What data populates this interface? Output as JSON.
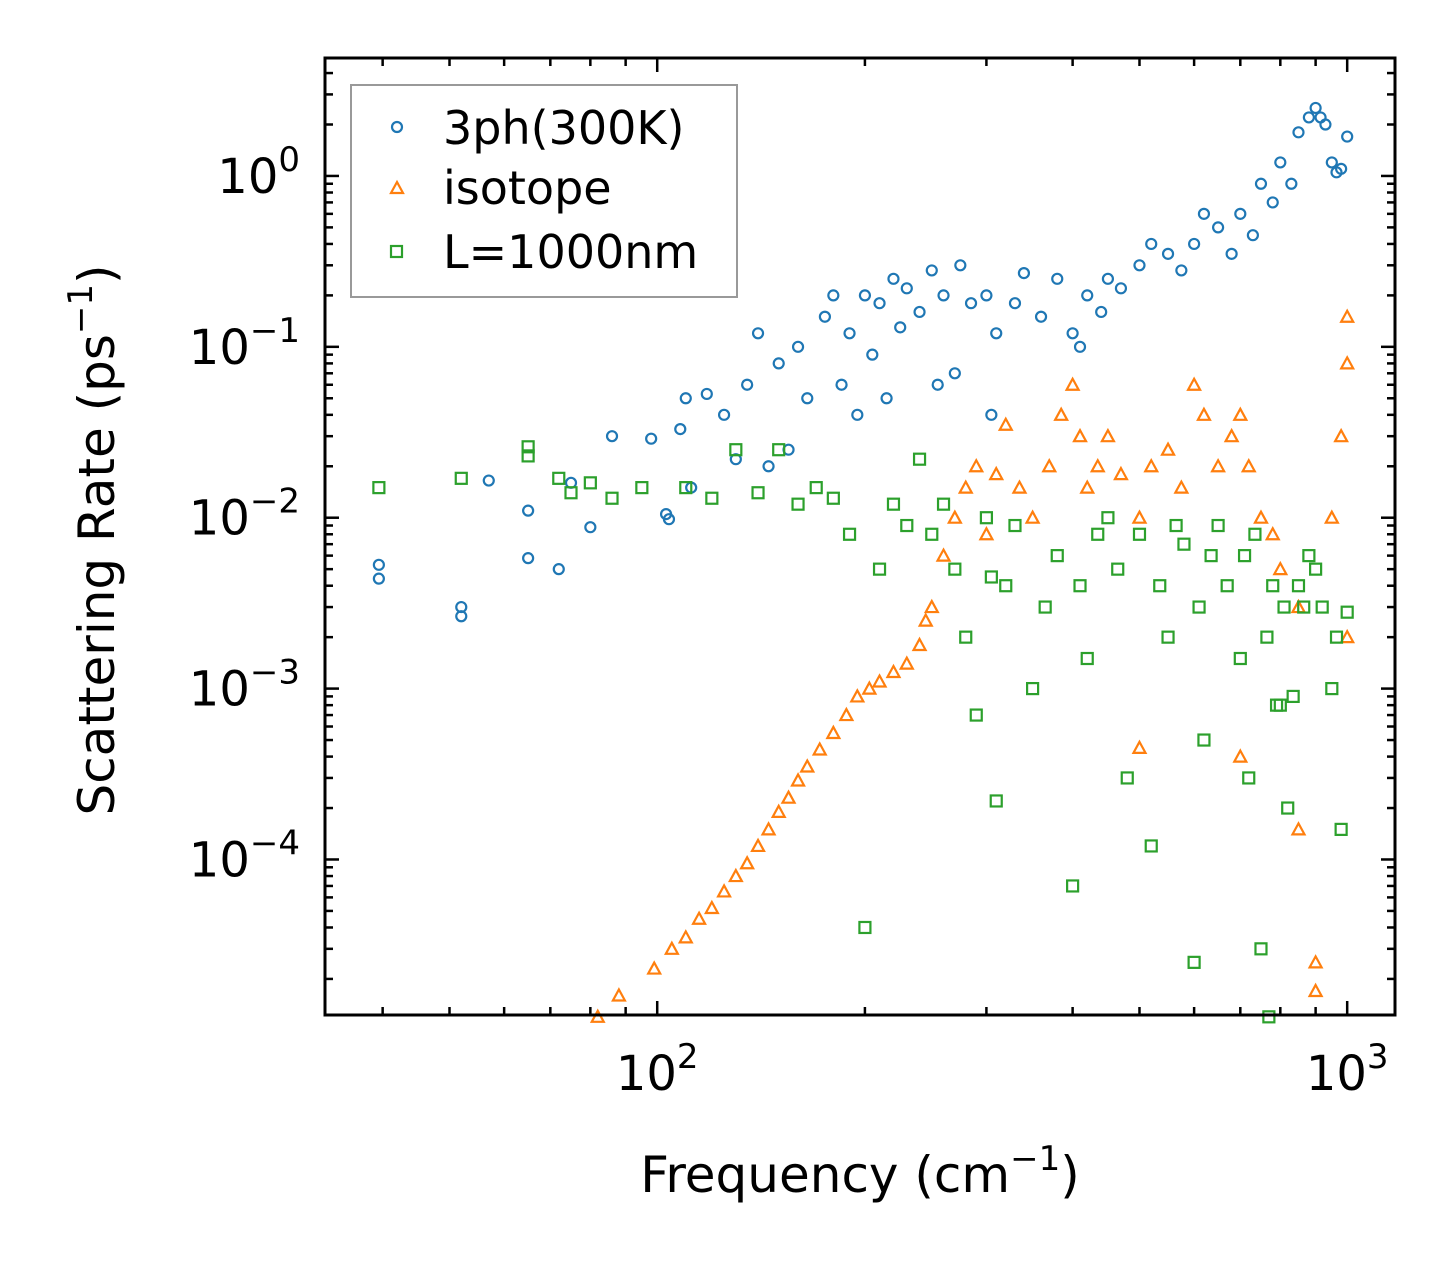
{
  "chart_data": {
    "type": "scatter",
    "xscale": "log",
    "yscale": "log",
    "xlabel": "Frequency (cm",
    "xlabel_sup": "−1",
    "xlabel_end": ")",
    "ylabel": "Scattering Rate (ps",
    "ylabel_sup": "−1",
    "ylabel_end": ")",
    "xlim": [
      33,
      1173
    ],
    "ylim": [
      1.23e-05,
      4.9
    ],
    "x_ticks": [
      {
        "value": 100,
        "base": "10",
        "exp": "2"
      },
      {
        "value": 1000,
        "base": "10",
        "exp": "3"
      }
    ],
    "y_ticks": [
      {
        "value": 1,
        "base": "10",
        "exp": "0"
      },
      {
        "value": 0.1,
        "base": "10",
        "exp": "−1"
      },
      {
        "value": 0.01,
        "base": "10",
        "exp": "−2"
      },
      {
        "value": 0.001,
        "base": "10",
        "exp": "−3"
      },
      {
        "value": 0.0001,
        "base": "10",
        "exp": "−4"
      }
    ],
    "legend_position": "top-left",
    "series": [
      {
        "name": "3ph(300K)",
        "marker": "circle",
        "color": "#1f77b4",
        "points": [
          [
            39.5,
            0.0053
          ],
          [
            39.5,
            0.0044
          ],
          [
            52,
            0.003
          ],
          [
            52,
            0.00265
          ],
          [
            57,
            0.0165
          ],
          [
            65,
            0.011
          ],
          [
            65,
            0.0058
          ],
          [
            72,
            0.005
          ],
          [
            75,
            0.016
          ],
          [
            80,
            0.0088
          ],
          [
            86,
            0.03
          ],
          [
            98,
            0.029
          ],
          [
            103,
            0.0105
          ],
          [
            104,
            0.0098
          ],
          [
            108,
            0.033
          ],
          [
            112,
            0.015
          ],
          [
            110,
            0.05
          ],
          [
            118,
            0.053
          ],
          [
            125,
            0.04
          ],
          [
            130,
            0.022
          ],
          [
            135,
            0.06
          ],
          [
            140,
            0.12
          ],
          [
            145,
            0.02
          ],
          [
            150,
            0.08
          ],
          [
            155,
            0.025
          ],
          [
            160,
            0.1
          ],
          [
            165,
            0.05
          ],
          [
            175,
            0.15
          ],
          [
            180,
            0.2
          ],
          [
            185,
            0.06
          ],
          [
            190,
            0.12
          ],
          [
            195,
            0.04
          ],
          [
            200,
            0.2
          ],
          [
            205,
            0.09
          ],
          [
            210,
            0.18
          ],
          [
            215,
            0.05
          ],
          [
            220,
            0.25
          ],
          [
            225,
            0.13
          ],
          [
            230,
            0.22
          ],
          [
            240,
            0.16
          ],
          [
            250,
            0.28
          ],
          [
            255,
            0.06
          ],
          [
            260,
            0.2
          ],
          [
            270,
            0.07
          ],
          [
            275,
            0.3
          ],
          [
            285,
            0.18
          ],
          [
            300,
            0.2
          ],
          [
            305,
            0.04
          ],
          [
            310,
            0.12
          ],
          [
            330,
            0.18
          ],
          [
            340,
            0.27
          ],
          [
            360,
            0.15
          ],
          [
            380,
            0.25
          ],
          [
            400,
            0.12
          ],
          [
            410,
            0.1
          ],
          [
            420,
            0.2
          ],
          [
            440,
            0.16
          ],
          [
            450,
            0.25
          ],
          [
            470,
            0.22
          ],
          [
            500,
            0.3
          ],
          [
            520,
            0.4
          ],
          [
            550,
            0.35
          ],
          [
            575,
            0.28
          ],
          [
            600,
            0.4
          ],
          [
            620,
            0.6
          ],
          [
            650,
            0.5
          ],
          [
            680,
            0.35
          ],
          [
            700,
            0.6
          ],
          [
            730,
            0.45
          ],
          [
            750,
            0.9
          ],
          [
            780,
            0.7
          ],
          [
            800,
            1.2
          ],
          [
            830,
            0.9
          ],
          [
            850,
            1.8
          ],
          [
            880,
            2.2
          ],
          [
            900,
            2.5
          ],
          [
            915,
            2.2
          ],
          [
            930,
            2.0
          ],
          [
            950,
            1.2
          ],
          [
            965,
            1.05
          ],
          [
            980,
            1.1
          ],
          [
            1000,
            1.7
          ]
        ]
      },
      {
        "name": "isotope",
        "marker": "triangle",
        "color": "#ff7f0e",
        "points": [
          [
            82,
            1.2e-05
          ],
          [
            88,
            1.6e-05
          ],
          [
            99,
            2.3e-05
          ],
          [
            105,
            3e-05
          ],
          [
            110,
            3.5e-05
          ],
          [
            115,
            4.5e-05
          ],
          [
            120,
            5.2e-05
          ],
          [
            125,
            6.5e-05
          ],
          [
            130,
            8e-05
          ],
          [
            135,
            9.5e-05
          ],
          [
            140,
            0.00012
          ],
          [
            145,
            0.00015
          ],
          [
            150,
            0.00019
          ],
          [
            155,
            0.00023
          ],
          [
            160,
            0.00029
          ],
          [
            165,
            0.00035
          ],
          [
            172,
            0.00044
          ],
          [
            180,
            0.00055
          ],
          [
            188,
            0.0007
          ],
          [
            195,
            0.0009
          ],
          [
            203,
            0.001
          ],
          [
            210,
            0.0011
          ],
          [
            220,
            0.00125
          ],
          [
            230,
            0.0014
          ],
          [
            240,
            0.0018
          ],
          [
            245,
            0.0025
          ],
          [
            250,
            0.003
          ],
          [
            260,
            0.006
          ],
          [
            270,
            0.01
          ],
          [
            280,
            0.015
          ],
          [
            290,
            0.02
          ],
          [
            300,
            0.008
          ],
          [
            310,
            0.018
          ],
          [
            320,
            0.035
          ],
          [
            335,
            0.015
          ],
          [
            350,
            0.01
          ],
          [
            370,
            0.02
          ],
          [
            385,
            0.04
          ],
          [
            400,
            0.06
          ],
          [
            410,
            0.03
          ],
          [
            420,
            0.015
          ],
          [
            435,
            0.02
          ],
          [
            450,
            0.03
          ],
          [
            470,
            0.018
          ],
          [
            500,
            0.01
          ],
          [
            520,
            0.02
          ],
          [
            550,
            0.025
          ],
          [
            575,
            0.015
          ],
          [
            600,
            0.06
          ],
          [
            620,
            0.04
          ],
          [
            650,
            0.02
          ],
          [
            680,
            0.03
          ],
          [
            700,
            0.04
          ],
          [
            720,
            0.02
          ],
          [
            750,
            0.01
          ],
          [
            780,
            0.008
          ],
          [
            800,
            0.005
          ],
          [
            850,
            0.003
          ],
          [
            900,
            2.5e-05
          ],
          [
            900,
            1.7e-05
          ],
          [
            950,
            0.01
          ],
          [
            980,
            0.03
          ],
          [
            1000,
            0.15
          ],
          [
            1000,
            0.08
          ],
          [
            1000,
            0.002
          ],
          [
            500,
            0.00045
          ],
          [
            700,
            0.0004
          ],
          [
            850,
            0.00015
          ]
        ]
      },
      {
        "name": "L=1000nm",
        "marker": "square",
        "color": "#2ca02c",
        "points": [
          [
            39.5,
            0.015
          ],
          [
            52,
            0.017
          ],
          [
            65,
            0.026
          ],
          [
            65,
            0.023
          ],
          [
            72,
            0.017
          ],
          [
            75,
            0.014
          ],
          [
            80,
            0.016
          ],
          [
            86,
            0.013
          ],
          [
            95,
            0.015
          ],
          [
            110,
            0.015
          ],
          [
            120,
            0.013
          ],
          [
            130,
            0.025
          ],
          [
            140,
            0.014
          ],
          [
            150,
            0.025
          ],
          [
            160,
            0.012
          ],
          [
            170,
            0.015
          ],
          [
            180,
            0.013
          ],
          [
            190,
            0.008
          ],
          [
            200,
            4e-05
          ],
          [
            210,
            0.005
          ],
          [
            220,
            0.012
          ],
          [
            230,
            0.009
          ],
          [
            240,
            0.022
          ],
          [
            250,
            0.008
          ],
          [
            260,
            0.012
          ],
          [
            270,
            0.005
          ],
          [
            280,
            0.002
          ],
          [
            290,
            0.0007
          ],
          [
            300,
            0.01
          ],
          [
            305,
            0.0045
          ],
          [
            310,
            0.00022
          ],
          [
            320,
            0.004
          ],
          [
            330,
            0.009
          ],
          [
            350,
            0.001
          ],
          [
            365,
            0.003
          ],
          [
            380,
            0.006
          ],
          [
            400,
            7e-05
          ],
          [
            410,
            0.004
          ],
          [
            420,
            0.0015
          ],
          [
            435,
            0.008
          ],
          [
            450,
            0.01
          ],
          [
            465,
            0.005
          ],
          [
            480,
            0.0003
          ],
          [
            500,
            0.008
          ],
          [
            520,
            0.00012
          ],
          [
            535,
            0.004
          ],
          [
            550,
            0.002
          ],
          [
            565,
            0.009
          ],
          [
            580,
            0.007
          ],
          [
            600,
            2.5e-05
          ],
          [
            610,
            0.003
          ],
          [
            620,
            0.0005
          ],
          [
            635,
            0.006
          ],
          [
            650,
            0.009
          ],
          [
            670,
            0.004
          ],
          [
            700,
            0.0015
          ],
          [
            710,
            0.006
          ],
          [
            720,
            0.0003
          ],
          [
            735,
            0.008
          ],
          [
            750,
            3e-05
          ],
          [
            765,
            0.002
          ],
          [
            780,
            0.004
          ],
          [
            790,
            0.0008
          ],
          [
            800,
            0.0008
          ],
          [
            810,
            0.003
          ],
          [
            820,
            0.0002
          ],
          [
            835,
            0.0009
          ],
          [
            850,
            0.004
          ],
          [
            865,
            0.003
          ],
          [
            880,
            0.006
          ],
          [
            900,
            0.005
          ],
          [
            920,
            0.003
          ],
          [
            950,
            0.001
          ],
          [
            965,
            0.002
          ],
          [
            980,
            0.00015
          ],
          [
            1000,
            0.0028
          ],
          [
            770,
            1.2e-05
          ]
        ]
      }
    ]
  }
}
